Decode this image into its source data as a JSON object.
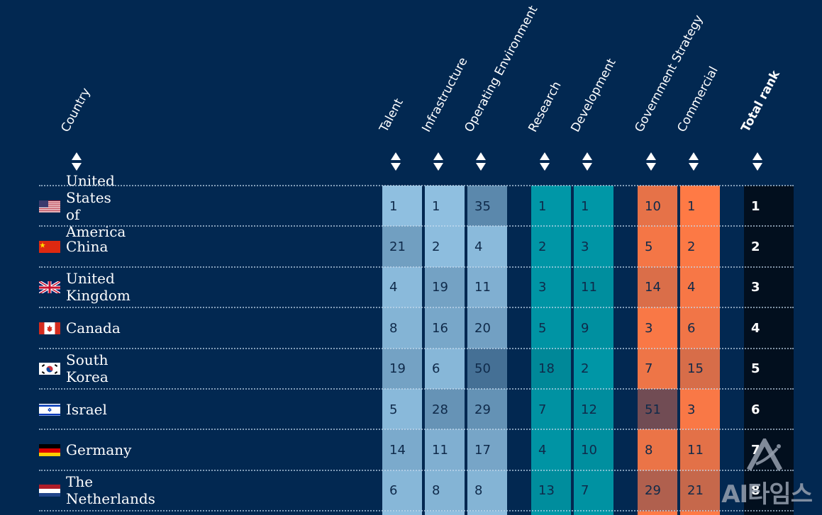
{
  "header": {
    "columns": [
      {
        "key": "country",
        "label": "Country"
      },
      {
        "key": "talent",
        "label": "Talent"
      },
      {
        "key": "infrastructure",
        "label": "Infrastructure"
      },
      {
        "key": "operating_environment",
        "label": "Operating Environment"
      },
      {
        "key": "research",
        "label": "Research"
      },
      {
        "key": "development",
        "label": "Development"
      },
      {
        "key": "government_strategy",
        "label": "Government Strategy"
      },
      {
        "key": "commercial",
        "label": "Commercial"
      },
      {
        "key": "total_rank",
        "label": "Total rank"
      }
    ]
  },
  "colors": {
    "background": "#022851",
    "talent_group": "#8fbfe0",
    "research_group": "#0097a7",
    "commercial_group": "#ff7a45",
    "total_rank": "#020f1e"
  },
  "watermark": "AI타임스",
  "chart_data": {
    "type": "table",
    "title": "",
    "columns": [
      "Country",
      "Talent",
      "Infrastructure",
      "Operating Environment",
      "Research",
      "Development",
      "Government Strategy",
      "Commercial",
      "Total rank"
    ],
    "rows": [
      {
        "country": "United States of America",
        "flag": "us-flag-icon",
        "values": [
          1,
          1,
          35,
          1,
          1,
          10,
          1
        ],
        "total": 1
      },
      {
        "country": "China",
        "flag": "cn-flag-icon",
        "values": [
          21,
          2,
          4,
          2,
          3,
          5,
          2
        ],
        "total": 2
      },
      {
        "country": "United Kingdom",
        "flag": "uk-flag-icon",
        "values": [
          4,
          19,
          11,
          3,
          11,
          14,
          4
        ],
        "total": 3
      },
      {
        "country": "Canada",
        "flag": "ca-flag-icon",
        "values": [
          8,
          16,
          20,
          5,
          9,
          3,
          6
        ],
        "total": 4
      },
      {
        "country": "South Korea",
        "flag": "kr-flag-icon",
        "values": [
          19,
          6,
          50,
          18,
          2,
          7,
          15
        ],
        "total": 5
      },
      {
        "country": "Israel",
        "flag": "il-flag-icon",
        "values": [
          5,
          28,
          29,
          7,
          12,
          51,
          3
        ],
        "total": 6
      },
      {
        "country": "Germany",
        "flag": "de-flag-icon",
        "values": [
          14,
          11,
          17,
          4,
          10,
          8,
          11
        ],
        "total": 7
      },
      {
        "country": "The Netherlands",
        "flag": "nl-flag-icon",
        "values": [
          6,
          8,
          8,
          13,
          7,
          29,
          21
        ],
        "total": 8
      }
    ]
  }
}
